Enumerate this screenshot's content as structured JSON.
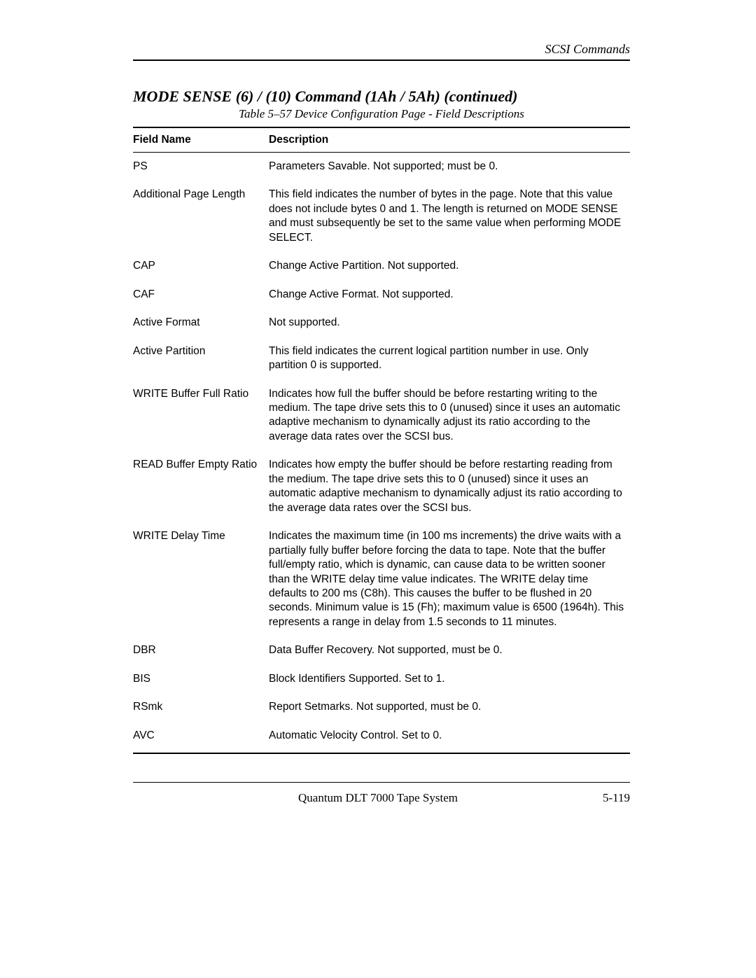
{
  "header": {
    "section_label": "SCSI Commands"
  },
  "title": "MODE SENSE  (6) / (10) Command  (1Ah / 5Ah) (continued)",
  "table_caption": "Table 5–57  Device Configuration Page - Field Descriptions",
  "table": {
    "columns": [
      "Field Name",
      "Description"
    ],
    "rows": [
      {
        "field": "PS",
        "desc": "Parameters Savable. Not supported; must be 0."
      },
      {
        "field": "Additional Page Length",
        "desc": "This field indicates the number of bytes in the page. Note that this value does not include bytes 0 and 1. The length is returned on MODE SENSE and must subsequently be set to the same value when performing MODE SELECT."
      },
      {
        "field": "CAP",
        "desc": "Change Active Partition. Not supported."
      },
      {
        "field": "CAF",
        "desc": "Change Active Format. Not supported."
      },
      {
        "field": "Active Format",
        "desc": "Not supported."
      },
      {
        "field": "Active Partition",
        "desc": "This field indicates the current logical partition number in use. Only partition 0 is supported."
      },
      {
        "field": "WRITE Buffer Full Ratio",
        "desc": "Indicates how full the buffer should be before restarting writing to the medium. The tape drive sets this to 0 (unused) since it uses an automatic adaptive mechanism to dynamically adjust its ratio according to the average data rates over the SCSI bus."
      },
      {
        "field": "READ Buffer Empty Ratio",
        "desc": "Indicates how empty the buffer should be before restarting reading from the medium. The tape drive sets this to 0 (unused) since it uses an automatic adaptive mechanism to dynamically adjust its ratio according to the average data rates over the SCSI bus."
      },
      {
        "field": "WRITE Delay Time",
        "desc": "Indicates the maximum time (in 100 ms increments) the drive waits with a partially fully buffer before forcing the data to tape. Note that the buffer full/empty ratio, which is dynamic, can cause data to be written sooner than the WRITE delay time value indicates. The WRITE delay time defaults to 200 ms (C8h). This causes the buffer to be flushed in 20 seconds. Minimum value is 15 (Fh); maximum value is 6500 (1964h). This represents a range in delay from 1.5 seconds to 11 minutes."
      },
      {
        "field": "DBR",
        "desc": "Data Buffer Recovery. Not supported, must be 0."
      },
      {
        "field": "BIS",
        "desc": "Block Identifiers Supported. Set to 1."
      },
      {
        "field": "RSmk",
        "desc": "Report Setmarks. Not supported, must be 0."
      },
      {
        "field": "AVC",
        "desc": "Automatic Velocity Control. Set to 0."
      }
    ]
  },
  "footer": {
    "center": "Quantum DLT 7000 Tape System",
    "page_number": "5-119"
  }
}
